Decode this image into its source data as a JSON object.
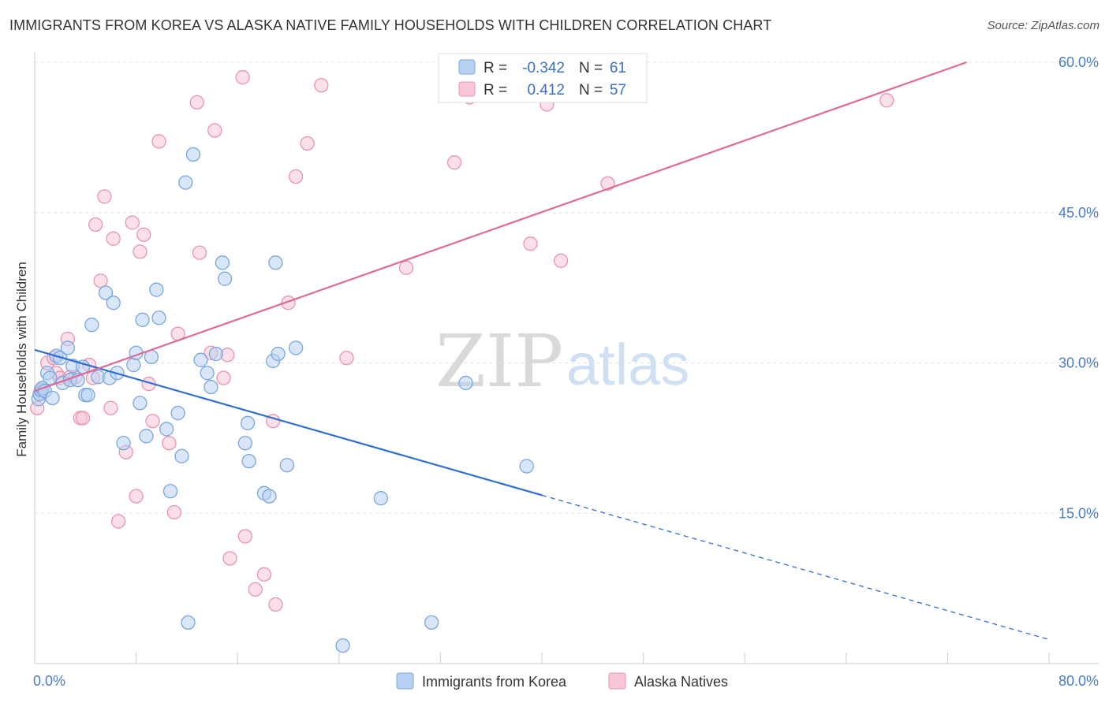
{
  "header": {
    "title": "IMMIGRANTS FROM KOREA VS ALASKA NATIVE FAMILY HOUSEHOLDS WITH CHILDREN CORRELATION CHART",
    "source": "Source: ZipAtlas.com"
  },
  "watermark": {
    "zip": "ZIP",
    "atlas": "atlas"
  },
  "legend_box": {
    "rows": [
      {
        "r_label": "R =",
        "r_value": "-0.342",
        "n_label": "N =",
        "n_value": "61"
      },
      {
        "r_label": "R =",
        "r_value": "0.412",
        "n_label": "N =",
        "n_value": "57"
      }
    ]
  },
  "colors": {
    "korea_fill": "#b8d1f3",
    "korea_stroke": "#7aa6e0",
    "korea_line": "#2e6fcf",
    "alaska_fill": "#f8c6d6",
    "alaska_stroke": "#e993b1",
    "alaska_line": "#e06a95",
    "grid": "#e3e3e3",
    "tick_text": "#4a7cc8"
  },
  "chart_data": {
    "type": "scatter",
    "title": "IMMIGRANTS FROM KOREA VS ALASKA NATIVE FAMILY HOUSEHOLDS WITH CHILDREN CORRELATION CHART",
    "xlabel": "",
    "ylabel": "Family Households with Children",
    "xlim": [
      0,
      80
    ],
    "ylim": [
      0,
      60
    ],
    "x_tick_labels": [
      "0.0%",
      "80.0%"
    ],
    "y_ticks": [
      15,
      30,
      45,
      60
    ],
    "y_tick_labels": [
      "15.0%",
      "30.0%",
      "45.0%",
      "60.0%"
    ],
    "legend": [
      "Immigrants from Korea",
      "Alaska Natives"
    ],
    "series": [
      {
        "name": "Immigrants from Korea",
        "r": -0.342,
        "n": 61,
        "trend": {
          "x0": 0,
          "y0": 31.3,
          "x1": 40,
          "y1": 16.8,
          "dash_x1": 80,
          "dash_y1": 2.4
        },
        "points": [
          [
            0.3,
            26.4
          ],
          [
            0.4,
            26.9
          ],
          [
            0.5,
            27.3
          ],
          [
            0.6,
            27.5
          ],
          [
            0.8,
            27.2
          ],
          [
            1.0,
            29.0
          ],
          [
            1.2,
            28.5
          ],
          [
            1.4,
            26.5
          ],
          [
            1.7,
            30.7
          ],
          [
            2.0,
            30.5
          ],
          [
            2.2,
            28.0
          ],
          [
            2.6,
            31.5
          ],
          [
            2.8,
            28.3
          ],
          [
            3.0,
            29.7
          ],
          [
            3.4,
            28.3
          ],
          [
            3.8,
            29.6
          ],
          [
            4.0,
            26.8
          ],
          [
            4.2,
            26.8
          ],
          [
            4.5,
            33.8
          ],
          [
            5.0,
            28.6
          ],
          [
            5.6,
            37.0
          ],
          [
            5.9,
            28.5
          ],
          [
            6.2,
            36.0
          ],
          [
            6.5,
            29.0
          ],
          [
            7.0,
            22.0
          ],
          [
            7.8,
            29.8
          ],
          [
            8.0,
            31.0
          ],
          [
            8.3,
            26.0
          ],
          [
            8.5,
            34.3
          ],
          [
            8.8,
            22.7
          ],
          [
            9.2,
            30.6
          ],
          [
            9.6,
            37.3
          ],
          [
            9.8,
            34.5
          ],
          [
            10.4,
            23.4
          ],
          [
            10.7,
            17.2
          ],
          [
            11.3,
            25.0
          ],
          [
            11.6,
            20.7
          ],
          [
            11.9,
            48.0
          ],
          [
            12.1,
            4.1
          ],
          [
            12.5,
            50.8
          ],
          [
            13.1,
            30.3
          ],
          [
            13.6,
            29.0
          ],
          [
            13.9,
            27.6
          ],
          [
            14.3,
            30.9
          ],
          [
            14.8,
            40.0
          ],
          [
            15.0,
            38.4
          ],
          [
            16.6,
            22.0
          ],
          [
            16.8,
            24.0
          ],
          [
            16.9,
            20.2
          ],
          [
            18.1,
            17.0
          ],
          [
            18.5,
            16.7
          ],
          [
            18.8,
            30.2
          ],
          [
            19.0,
            40.0
          ],
          [
            19.2,
            30.9
          ],
          [
            19.9,
            19.8
          ],
          [
            20.6,
            31.5
          ],
          [
            24.3,
            1.8
          ],
          [
            27.3,
            16.5
          ],
          [
            31.3,
            4.1
          ],
          [
            34.0,
            28.0
          ],
          [
            38.8,
            19.7
          ]
        ]
      },
      {
        "name": "Alaska Natives",
        "r": 0.412,
        "n": 57,
        "trend": {
          "x0": 0,
          "y0": 27.2,
          "x1": 73.5,
          "y1": 60.0
        },
        "points": [
          [
            0.2,
            25.5
          ],
          [
            0.5,
            27.1
          ],
          [
            1.0,
            30.0
          ],
          [
            1.5,
            30.5
          ],
          [
            1.7,
            29.0
          ],
          [
            2.0,
            28.5
          ],
          [
            2.6,
            32.4
          ],
          [
            2.8,
            28.6
          ],
          [
            3.2,
            28.6
          ],
          [
            3.6,
            24.5
          ],
          [
            3.8,
            24.5
          ],
          [
            4.3,
            29.8
          ],
          [
            4.6,
            28.5
          ],
          [
            4.8,
            43.8
          ],
          [
            5.2,
            38.2
          ],
          [
            5.5,
            46.6
          ],
          [
            6.0,
            25.5
          ],
          [
            6.2,
            42.4
          ],
          [
            6.6,
            14.2
          ],
          [
            7.2,
            21.1
          ],
          [
            7.7,
            44.0
          ],
          [
            8.0,
            16.7
          ],
          [
            8.3,
            41.1
          ],
          [
            8.6,
            42.8
          ],
          [
            9.0,
            27.9
          ],
          [
            9.3,
            24.2
          ],
          [
            9.8,
            52.1
          ],
          [
            10.6,
            22.0
          ],
          [
            11.0,
            15.1
          ],
          [
            11.3,
            32.9
          ],
          [
            12.8,
            56.0
          ],
          [
            13.0,
            41.0
          ],
          [
            13.9,
            31.0
          ],
          [
            14.2,
            53.2
          ],
          [
            14.9,
            28.5
          ],
          [
            15.2,
            30.8
          ],
          [
            15.4,
            10.5
          ],
          [
            16.4,
            58.5
          ],
          [
            16.6,
            12.7
          ],
          [
            17.4,
            7.4
          ],
          [
            18.1,
            8.9
          ],
          [
            18.8,
            24.2
          ],
          [
            19.0,
            5.9
          ],
          [
            20.0,
            36.0
          ],
          [
            20.6,
            48.6
          ],
          [
            21.5,
            51.9
          ],
          [
            22.6,
            57.7
          ],
          [
            24.6,
            30.5
          ],
          [
            29.3,
            39.5
          ],
          [
            33.1,
            50.0
          ],
          [
            34.3,
            56.5
          ],
          [
            39.1,
            41.9
          ],
          [
            40.4,
            55.8
          ],
          [
            41.5,
            40.2
          ],
          [
            45.2,
            47.9
          ],
          [
            67.2,
            56.2
          ],
          [
            35.2,
            56.8
          ]
        ]
      }
    ]
  }
}
